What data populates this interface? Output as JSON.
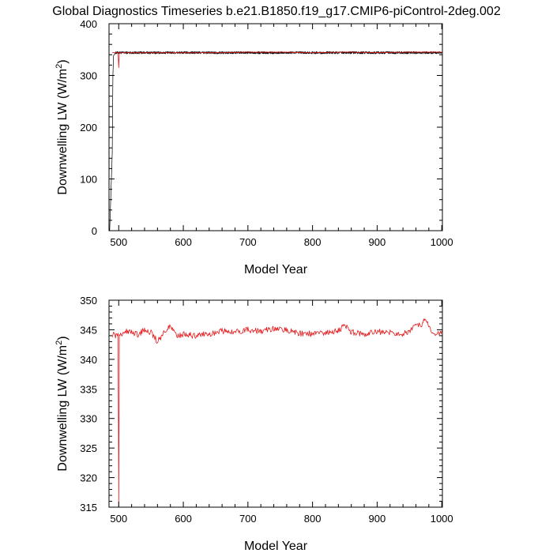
{
  "chart_data": {
    "title": "Global Diagnostics Timeseries b.e21.B1850.f19_g17.CMIP6-piControl-2deg.002",
    "panels": [
      {
        "type": "line",
        "xlabel": "Model Year",
        "ylabel": "Downwelling LW (W/m²)",
        "xlim": [
          485,
          1001
        ],
        "ylim": [
          0,
          400
        ],
        "xticks": [
          500,
          600,
          700,
          800,
          900,
          1000
        ],
        "yticks": [
          0,
          100,
          200,
          300,
          400
        ],
        "series": [
          {
            "color": "#000000",
            "style": "monthly",
            "x": [
              486,
              490,
              491,
              492,
              495,
              500,
              505,
              510,
              550,
              600,
              650,
              700,
              750,
              800,
              850,
              900,
              950,
              1000
            ],
            "y": [
              0,
              150,
              300,
              338,
              344,
              344,
              344,
              344,
              344,
              344,
              344,
              344,
              344,
              344,
              344,
              344,
              344,
              344
            ]
          },
          {
            "color": "#e41a1c",
            "style": "annual",
            "x": [
              490,
              495,
              499,
              500,
              501,
              505,
              550,
              600,
              650,
              700,
              750,
              800,
              850,
              900,
              950,
              1000
            ],
            "y": [
              344,
              344,
              344,
              315,
              344,
              344,
              344,
              344,
              344,
              345,
              345,
              344,
              345,
              344,
              345,
              345
            ]
          }
        ]
      },
      {
        "type": "line",
        "xlabel": "Model Year",
        "ylabel": "Downwelling LW (W/m²)",
        "xlim": [
          485,
          1001
        ],
        "ylim": [
          315,
          350
        ],
        "xticks": [
          500,
          600,
          700,
          800,
          900,
          1000
        ],
        "yticks": [
          315,
          320,
          325,
          330,
          335,
          340,
          345,
          350
        ],
        "series": [
          {
            "color": "#e41a1c",
            "style": "annual",
            "x": [
              490,
              495,
              499,
              500,
              501,
              505,
              510,
              520,
              530,
              540,
              550,
              560,
              570,
              580,
              590,
              600,
              620,
              640,
              660,
              680,
              700,
              720,
              740,
              760,
              780,
              800,
              820,
              840,
              850,
              860,
              880,
              900,
              920,
              940,
              955,
              960,
              970,
              975,
              980,
              990,
              1000
            ],
            "y": [
              344.2,
              344.0,
              344.4,
              315.0,
              343.8,
              344.3,
              344.8,
              344.5,
              344.2,
              345.0,
              344.6,
              343.0,
              344.5,
              345.8,
              344.0,
              344.2,
              344.0,
              344.3,
              344.8,
              344.6,
              345.0,
              344.7,
              345.2,
              345.0,
              344.4,
              344.3,
              344.5,
              344.8,
              345.7,
              344.6,
              344.3,
              344.7,
              344.5,
              344.2,
              345.2,
              345.8,
              346.0,
              347.0,
              345.2,
              344.0,
              344.8
            ]
          }
        ]
      }
    ]
  }
}
